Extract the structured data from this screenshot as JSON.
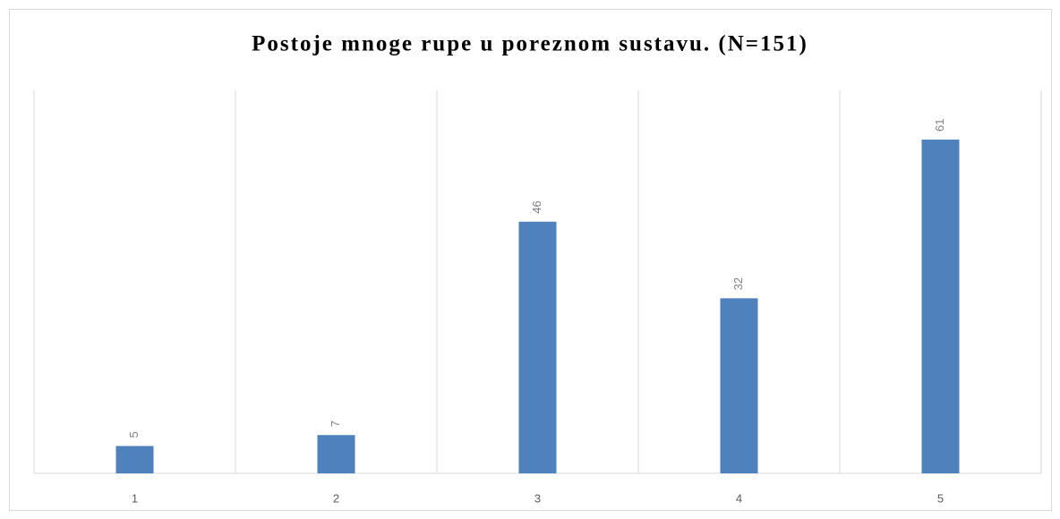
{
  "chart_data": {
    "type": "bar",
    "title": "Postoje mnoge rupe u poreznom sustavu. (N=151)",
    "categories": [
      "1",
      "2",
      "3",
      "4",
      "5"
    ],
    "values": [
      5,
      7,
      46,
      32,
      61
    ],
    "color": "#4f81bd",
    "ylim": [
      0,
      70
    ],
    "grid": true
  }
}
